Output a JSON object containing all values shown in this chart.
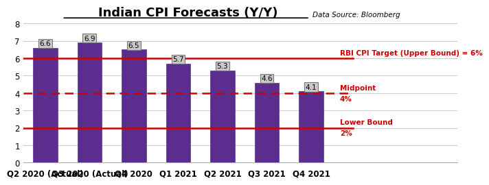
{
  "categories": [
    "Q2 2020 (Actual)",
    "Q3 2020 (Actual)",
    "Q4 2020",
    "Q1 2021",
    "Q2 2021",
    "Q3 2021",
    "Q4 2021"
  ],
  "values": [
    6.6,
    6.9,
    6.5,
    5.7,
    5.3,
    4.6,
    4.1
  ],
  "bar_color": "#5b2d8e",
  "title": "Indian CPI Forecasts (Y/Y)",
  "data_source": "Data Source: Bloomberg",
  "upper_bound": 6.0,
  "upper_bound_label": "RBI CPI Target (Upper Bound) = 6%",
  "midpoint": 4.0,
  "midpoint_label1": "Midpoint",
  "midpoint_label2": "4%",
  "lower_bound": 2.0,
  "lower_bound_label1": "Lower Bound",
  "lower_bound_label2": "2%",
  "ylim": [
    0,
    8
  ],
  "yticks": [
    0,
    1,
    2,
    3,
    4,
    5,
    6,
    7,
    8
  ],
  "line_color": "#cc0000",
  "background_color": "#ffffff",
  "title_fontsize": 13,
  "tick_fontsize": 8.5,
  "ref_label_fontsize": 7.5,
  "bar_label_fontsize": 7.5,
  "data_source_fontsize": 7.5
}
